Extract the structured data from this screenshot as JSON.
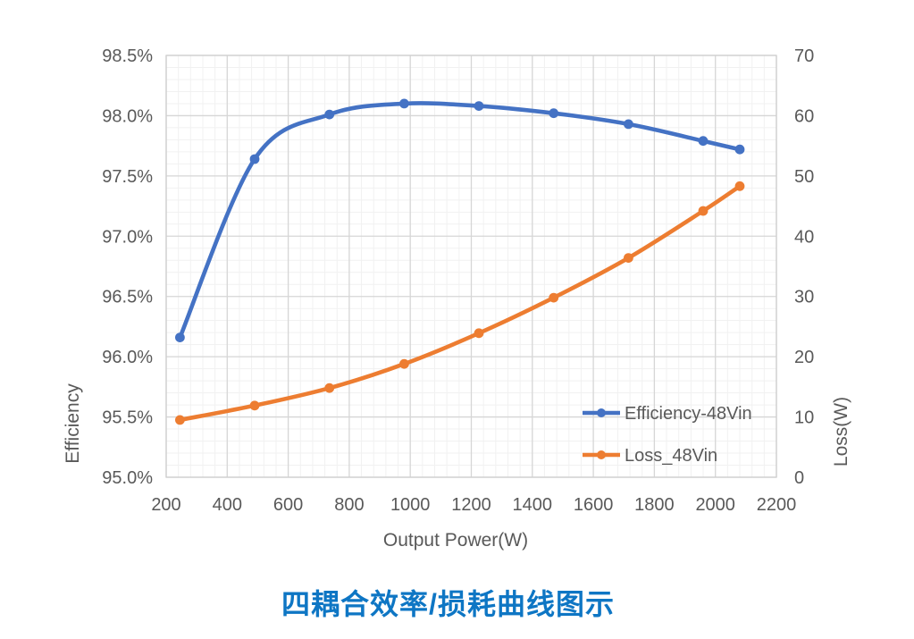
{
  "chart_data": {
    "type": "line",
    "title": "四耦合效率/损耗曲线图示",
    "title_color": "#0e76c4",
    "text_color": "#595959",
    "xlabel": "Output Power(W)",
    "x_axis": {
      "range": [
        200,
        2200
      ],
      "tick_values": [
        200,
        400,
        600,
        800,
        1000,
        1200,
        1400,
        1600,
        1800,
        2000,
        2200
      ],
      "tick_labels": [
        "200",
        "400",
        "600",
        "800",
        "1000",
        "1200",
        "1400",
        "1600",
        "1800",
        "2000",
        "2200"
      ],
      "minor_step": 40
    },
    "y_left": {
      "label": "Efficiency",
      "range": [
        95.0,
        98.5
      ],
      "tick_values": [
        95.0,
        95.5,
        96.0,
        96.5,
        97.0,
        97.5,
        98.0,
        98.5
      ],
      "tick_labels": [
        "95.0%",
        "95.5%",
        "96.0%",
        "96.5%",
        "97.0%",
        "97.5%",
        "98.0%",
        "98.5%"
      ],
      "minor_step": 0.1
    },
    "y_right": {
      "label": "Loss(W)",
      "range": [
        0,
        70
      ],
      "tick_values": [
        0,
        10,
        20,
        30,
        40,
        50,
        60,
        70
      ],
      "tick_labels": [
        "0",
        "10",
        "20",
        "30",
        "40",
        "50",
        "60",
        "70"
      ]
    },
    "grid": {
      "enabled": true,
      "major_color": "#d6d6d6",
      "minor_color": "#f1f1f1",
      "border_color": "#cfcfcf"
    },
    "legend": {
      "position": "inside-bottom-right",
      "items": [
        "Efficiency-48Vin",
        "Loss_48Vin"
      ]
    },
    "series": [
      {
        "name": "Efficiency-48Vin",
        "axis": "left",
        "unit": "%",
        "color": "#4472C4",
        "x": [
          245,
          490,
          735,
          980,
          1225,
          1470,
          1715,
          1960,
          2080
        ],
        "values": [
          96.16,
          97.64,
          98.01,
          98.1,
          98.08,
          98.02,
          97.93,
          97.79,
          97.72
        ]
      },
      {
        "name": "Loss_48Vin",
        "axis": "right",
        "unit": "W",
        "color": "#ED7D31",
        "x": [
          245,
          490,
          735,
          980,
          1225,
          1470,
          1715,
          1960,
          2080
        ],
        "values": [
          9.5,
          11.9,
          14.8,
          18.8,
          23.9,
          29.8,
          36.4,
          44.2,
          48.3
        ]
      }
    ]
  }
}
